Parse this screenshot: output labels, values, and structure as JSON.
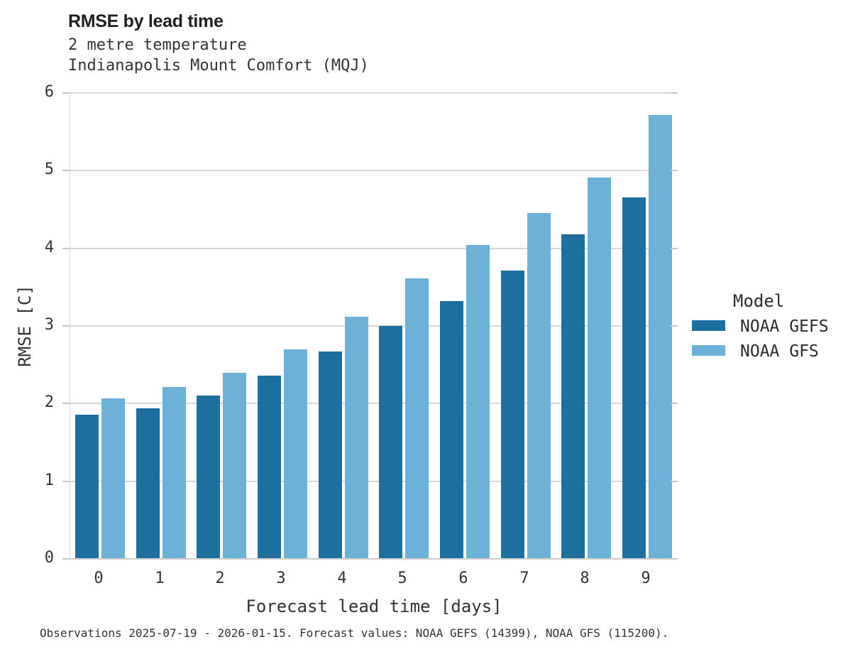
{
  "header": {
    "title": "RMSE by lead time",
    "subtitle1": "2 metre temperature",
    "subtitle2": "Indianapolis Mount Comfort (MQJ)"
  },
  "chart_data": {
    "type": "bar",
    "title": "RMSE by lead time",
    "subtitle": [
      "2 metre temperature",
      "Indianapolis Mount Comfort (MQJ)"
    ],
    "categories": [
      "0",
      "1",
      "2",
      "3",
      "4",
      "5",
      "6",
      "7",
      "8",
      "9"
    ],
    "series": [
      {
        "name": "NOAA GEFS",
        "color": "#1d6fa0",
        "values": [
          1.86,
          1.94,
          2.1,
          2.36,
          2.67,
          3.0,
          3.32,
          3.71,
          4.18,
          4.66
        ]
      },
      {
        "name": "NOAA GFS",
        "color": "#6bb1d8",
        "values": [
          2.07,
          2.21,
          2.4,
          2.7,
          3.12,
          3.61,
          4.04,
          4.45,
          4.91,
          5.72
        ]
      }
    ],
    "xlabel": "Forecast lead time [days]",
    "ylabel": "RMSE [C]",
    "ylim": [
      0,
      6
    ],
    "yticks": [
      0,
      1,
      2,
      3,
      4,
      5,
      6
    ],
    "grid": "horizontal",
    "gridline_color": "#d9d9d9",
    "legend_position": "right",
    "legend_title": "Model"
  },
  "legend": {
    "title": "Model",
    "entries": [
      {
        "label": "NOAA GEFS",
        "color": "#1d6fa0"
      },
      {
        "label": "NOAA GFS",
        "color": "#6bb1d8"
      }
    ]
  },
  "footer": {
    "text": "Observations 2025-07-19 - 2026-01-15. Forecast values: NOAA GEFS (14399), NOAA GFS (115200)."
  },
  "colors": {
    "gefs_dark_blue": "#1d6fa0",
    "gfs_light_blue": "#6bb1d8",
    "gridline": "#d9d9d9",
    "text": "#333333"
  }
}
